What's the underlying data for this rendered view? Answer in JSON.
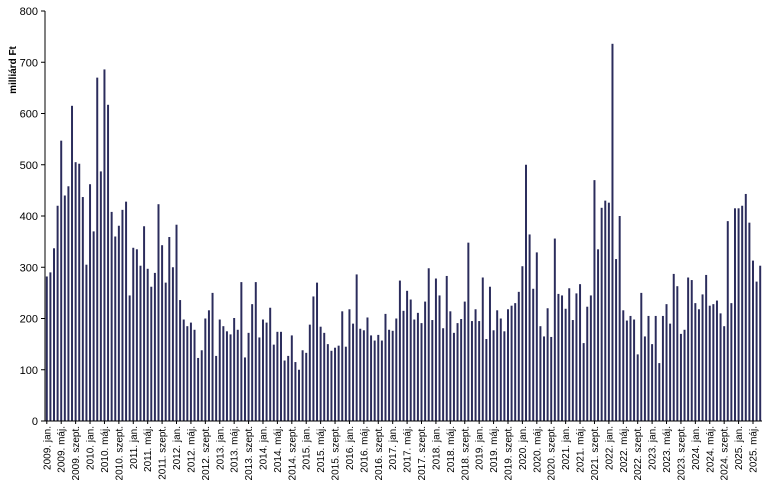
{
  "chart_data": {
    "type": "bar",
    "ylabel": "milliárd Ft",
    "ylim": [
      0,
      800
    ],
    "yticks": [
      0,
      100,
      200,
      300,
      400,
      500,
      600,
      700,
      800
    ],
    "grid": false,
    "legend": "none",
    "bar_color": "#2b2c5c",
    "x_tick_labels": [
      "2009. jan.",
      "2009. máj.",
      "2009. szept.",
      "2010. jan.",
      "2010. máj.",
      "2010. szept.",
      "2011. jan.",
      "2011. máj.",
      "2011. szept.",
      "2012. jan.",
      "2012. máj.",
      "2012. szept.",
      "2013. jan.",
      "2013. máj.",
      "2013. szept.",
      "2014. jan.",
      "2014. máj.",
      "2014. szept.",
      "2015. jan.",
      "2015. máj.",
      "2015. szept.",
      "2016. jan.",
      "2016. máj.",
      "2016. szept.",
      "2017. jan.",
      "2017. máj.",
      "2017. szept.",
      "2018. jan.",
      "2018. máj.",
      "2018. szept.",
      "2019. jan.",
      "2019. máj.",
      "2019. szept.",
      "2020. jan.",
      "2020. máj.",
      "2020. szept.",
      "2021. jan.",
      "2021. máj.",
      "2021. szept.",
      "2022. jan.",
      "2022. máj.",
      "2022. szept.",
      "2023. jan.",
      "2023. máj.",
      "2023. szept.",
      "2024. jan.",
      "2024. máj.",
      "2024. szept.",
      "2025. jan.",
      "2025. máj."
    ],
    "values": [
      282,
      290,
      337,
      420,
      547,
      440,
      458,
      615,
      505,
      502,
      437,
      305,
      462,
      370,
      670,
      487,
      686,
      617,
      408,
      360,
      381,
      412,
      428,
      245,
      338,
      335,
      303,
      380,
      297,
      262,
      289,
      423,
      343,
      270,
      359,
      300,
      383,
      236,
      198,
      185,
      192,
      178,
      123,
      138,
      200,
      216,
      250,
      127,
      198,
      185,
      175,
      169,
      201,
      178,
      271,
      124,
      172,
      228,
      271,
      163,
      198,
      192,
      221,
      149,
      174,
      174,
      118,
      127,
      167,
      115,
      100,
      138,
      133,
      188,
      243,
      270,
      184,
      172,
      150,
      137,
      143,
      147,
      214,
      145,
      218,
      190,
      286,
      180,
      177,
      202,
      167,
      157,
      168,
      157,
      209,
      178,
      176,
      200,
      274,
      215,
      254,
      237,
      198,
      211,
      191,
      233,
      298,
      197,
      278,
      245,
      181,
      283,
      214,
      172,
      191,
      199,
      233,
      348,
      195,
      218,
      195,
      280,
      160,
      262,
      177,
      216,
      200,
      175,
      218,
      225,
      230,
      252,
      302,
      500,
      364,
      258,
      329,
      185,
      165,
      220,
      164,
      356,
      248,
      245,
      219,
      259,
      197,
      249,
      267,
      152,
      223,
      245,
      470,
      335,
      416,
      430,
      426,
      736,
      316,
      400,
      216,
      196,
      205,
      198,
      130,
      250,
      165,
      205,
      150,
      205,
      113,
      205,
      228,
      190,
      287,
      263,
      170,
      178,
      280,
      275,
      230,
      218,
      247,
      285,
      225,
      228,
      235,
      210,
      185,
      390,
      230,
      415,
      415,
      420,
      443,
      387,
      313,
      272,
      303
    ]
  }
}
